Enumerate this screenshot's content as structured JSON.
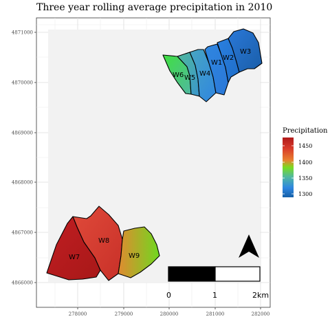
{
  "title": "Three year rolling average precipitation in 2010",
  "x_ticks": [
    "278000",
    "279000",
    "280000",
    "281000",
    "282000"
  ],
  "y_ticks": [
    "4866000",
    "4867000",
    "4868000",
    "4869000",
    "4870000",
    "4871000"
  ],
  "legend": {
    "title": "Precipitation",
    "ticks": [
      "1450",
      "1400",
      "1350",
      "1300"
    ],
    "colors": [
      "#b01a1a",
      "#d83a2a",
      "#e88030",
      "#78dc20",
      "#50b8a0",
      "#2f86e0",
      "#1560a8"
    ]
  },
  "scale_bar": {
    "labels": [
      "0",
      "1",
      "2km"
    ]
  },
  "north_arrow": "north-arrow",
  "watersheds": [
    {
      "id": "W1",
      "label": "W1",
      "precip": 1320,
      "color_a": "#2f86e0",
      "color_b": "#2a78d8"
    },
    {
      "id": "W2",
      "label": "W2",
      "precip": 1315,
      "color_a": "#2a80e0",
      "color_b": "#1f6dc8"
    },
    {
      "id": "W3",
      "label": "W3",
      "precip": 1305,
      "color_a": "#2a78d8",
      "color_b": "#1a5ea8"
    },
    {
      "id": "W4",
      "label": "W4",
      "precip": 1330,
      "color_a": "#4aa8c0",
      "color_b": "#2f86e0"
    },
    {
      "id": "W5",
      "label": "W5",
      "precip": 1345,
      "color_a": "#50b89c",
      "color_b": "#3a96cc"
    },
    {
      "id": "W6",
      "label": "W6",
      "precip": 1375,
      "color_a": "#40e040",
      "color_b": "#50b8a0"
    },
    {
      "id": "W7",
      "label": "W7",
      "precip": 1460,
      "color_a": "#c01e22",
      "color_b": "#a81818"
    },
    {
      "id": "W8",
      "label": "W8",
      "precip": 1440,
      "color_a": "#e04a3a",
      "color_b": "#c83028"
    },
    {
      "id": "W9",
      "label": "W9",
      "precip": 1390,
      "color_a": "#e08a30",
      "color_b": "#70d820"
    }
  ]
}
